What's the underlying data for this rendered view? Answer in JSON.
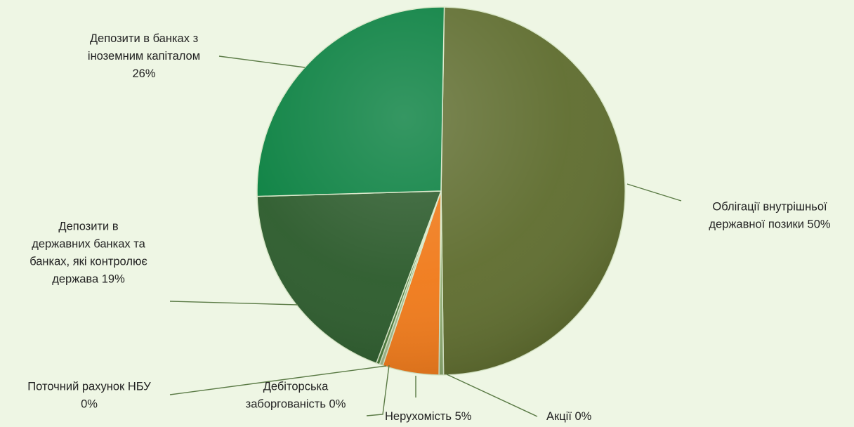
{
  "chart_data": {
    "type": "pie",
    "title": "",
    "colors": {
      "olive": "#5f6d2f",
      "green": "#098040",
      "dark_green": "#2c5b2c",
      "orange": "#f07a1a",
      "light_green": "#8aa86e",
      "background": "#eef6e4"
    },
    "slices": [
      {
        "label_lines": [
          "Облігації внутрішньої",
          "державної позики 50%"
        ],
        "value": 50,
        "color": "#5f6d2f"
      },
      {
        "label_lines": [
          "Акції 0%"
        ],
        "value": 0.4,
        "color": "#8aa86e"
      },
      {
        "label_lines": [
          "Нерухомість 5%"
        ],
        "value": 5,
        "color": "#f07a1a"
      },
      {
        "label_lines": [
          "Дебіторська",
          "заборгованість 0%"
        ],
        "value": 0.3,
        "color": "#a0b88a"
      },
      {
        "label_lines": [
          "Поточний рахунок НБУ",
          "0%"
        ],
        "value": 0.3,
        "color": "#4a7a3a"
      },
      {
        "label_lines": [
          "Депозити в",
          "державних банках та",
          "банках, які контролює",
          "держава 19%"
        ],
        "value": 19,
        "color": "#2c5b2c"
      },
      {
        "label_lines": [
          "Депозити в банках з",
          "іноземним капіталом",
          "26%"
        ],
        "value": 26,
        "color": "#098040"
      }
    ]
  }
}
